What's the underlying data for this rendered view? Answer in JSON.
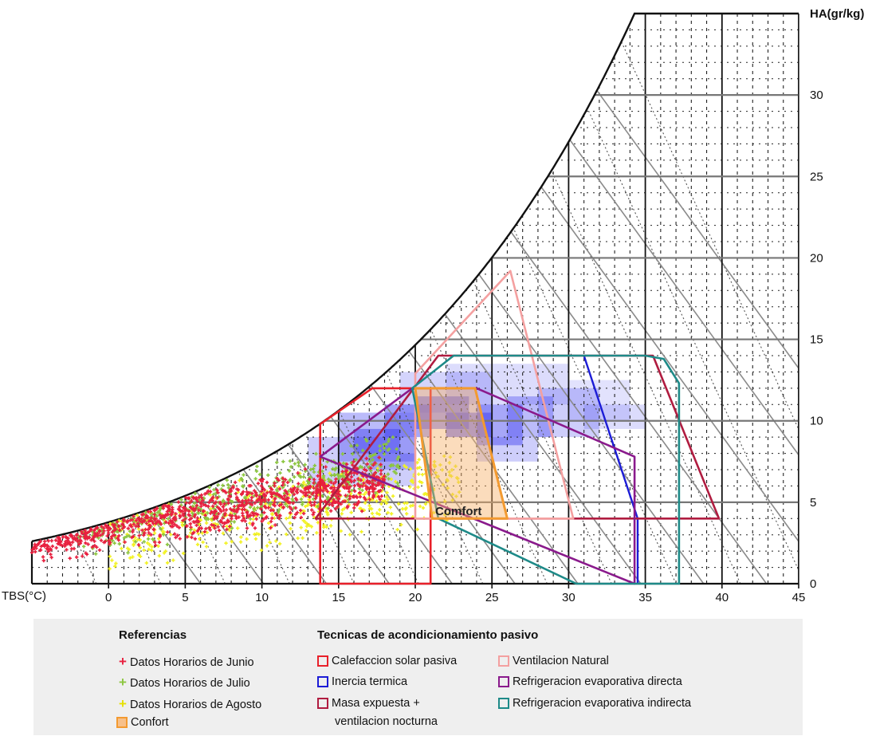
{
  "chart_data": {
    "type": "scatter",
    "title": "",
    "xlabel": "TBS(°C)",
    "ylabel": "HA(gr/kg)",
    "xlim": [
      -5,
      45
    ],
    "ylim": [
      0,
      35
    ],
    "x_ticks": [
      0,
      5,
      10,
      15,
      20,
      25,
      30,
      35,
      40,
      45
    ],
    "y_ticks": [
      0,
      5,
      10,
      15,
      20,
      25,
      30
    ],
    "x_tick_labels": [
      "0",
      "5",
      "10",
      "15",
      "20",
      "25",
      "30",
      "35",
      "40",
      "45"
    ],
    "y_tick_labels": [
      "0",
      "5",
      "10",
      "15",
      "20",
      "25",
      "30"
    ],
    "zones": [
      {
        "name": "Calefaccion solar pasiva",
        "color": "#e8202a",
        "points": [
          [
            13.8,
            0
          ],
          [
            21,
            0
          ],
          [
            21,
            12
          ],
          [
            17.2,
            12
          ],
          [
            13.8,
            9.8
          ]
        ]
      },
      {
        "name": "Inercia termica",
        "color": "#1c1cd6",
        "points": [
          [
            31,
            14
          ],
          [
            34.5,
            4
          ],
          [
            34.5,
            0
          ]
        ]
      },
      {
        "name": "Masa expuesta + ventilacion nocturna",
        "color": "#b01c40",
        "points": [
          [
            21.5,
            14
          ],
          [
            35.5,
            14
          ],
          [
            39.8,
            4
          ],
          [
            13.5,
            4
          ]
        ]
      },
      {
        "name": "Ventilacion Natural",
        "color": "#f4a0a0",
        "points": [
          [
            20,
            12.9
          ],
          [
            26.2,
            19.2
          ],
          [
            30.3,
            4
          ],
          [
            26,
            4
          ],
          [
            20,
            4
          ]
        ]
      },
      {
        "name": "Refrigeracion evaporativa directa",
        "color": "#8a1a8c",
        "points": [
          [
            13.8,
            7.8
          ],
          [
            19.8,
            12
          ],
          [
            24,
            12
          ],
          [
            34.3,
            7.8
          ],
          [
            34.3,
            0
          ]
        ]
      },
      {
        "name": "Refrigeracion evaporativa indirecta",
        "color": "#1e8a88",
        "points": [
          [
            21.5,
            4
          ],
          [
            30.5,
            0
          ],
          [
            37.2,
            0
          ],
          [
            37.2,
            12.3
          ],
          [
            36.2,
            13.8
          ],
          [
            35,
            14
          ],
          [
            22.5,
            14
          ],
          [
            19.8,
            12
          ]
        ]
      },
      {
        "name": "Confort",
        "color": "#f39a30",
        "points": [
          [
            20,
            12
          ],
          [
            23.9,
            12
          ],
          [
            26,
            4
          ],
          [
            21.1,
            4
          ]
        ]
      }
    ],
    "series": [
      {
        "name": "Datos Horarios de Junio",
        "color": "#e8203f",
        "symbol": "+",
        "cloud": {
          "x_from": -5,
          "x_to": 18,
          "y_at_x_from": 2.6,
          "y_at_x_to": 6.3,
          "spread": 1.7
        }
      },
      {
        "name": "Datos Horarios de Julio",
        "color": "#8cc63f",
        "symbol": "+",
        "cloud": {
          "x_from": -2,
          "x_to": 19,
          "y_at_x_from": 3.0,
          "y_at_x_to": 7.5,
          "spread": 2.0
        }
      },
      {
        "name": "Datos Horarios de Agosto",
        "color": "#f2f224",
        "symbol": "+",
        "cloud": {
          "x_from": 0,
          "x_to": 23,
          "y_at_x_from": 2.8,
          "y_at_x_to": 6.0,
          "spread": 2.4
        }
      }
    ],
    "zone_labels": [
      "Comfort"
    ],
    "grid": true
  },
  "legend": {
    "references_title": "Referencias",
    "techniques_title": "Tecnicas de acondicionamiento pasivo",
    "references": [
      {
        "label": "Datos Horarios de Junio",
        "color": "#e8203f",
        "symbol": "+"
      },
      {
        "label": "Datos Horarios de Julio",
        "color": "#8cc63f",
        "symbol": "+"
      },
      {
        "label": "Datos Horarios de Agosto",
        "color": "#f2f224",
        "symbol": "+"
      },
      {
        "label": "Confort",
        "color": "#f39a30",
        "symbol": "box"
      }
    ],
    "techniques_col1": [
      {
        "label": "Calefaccion solar pasiva",
        "color": "#e8202a"
      },
      {
        "label": "Inercia termica",
        "color": "#1c1cd6"
      },
      {
        "label_line1": "Masa expuesta +",
        "label_line2": "ventilacion nocturna",
        "color": "#b01c40"
      }
    ],
    "techniques_col2": [
      {
        "label": "Ventilacion Natural",
        "color": "#f4a0a0"
      },
      {
        "label": "Refrigeracion evaporativa directa",
        "color": "#8a1a8c"
      },
      {
        "label": "Refrigeracion evaporativa indirecta",
        "color": "#1e8a88"
      }
    ]
  }
}
